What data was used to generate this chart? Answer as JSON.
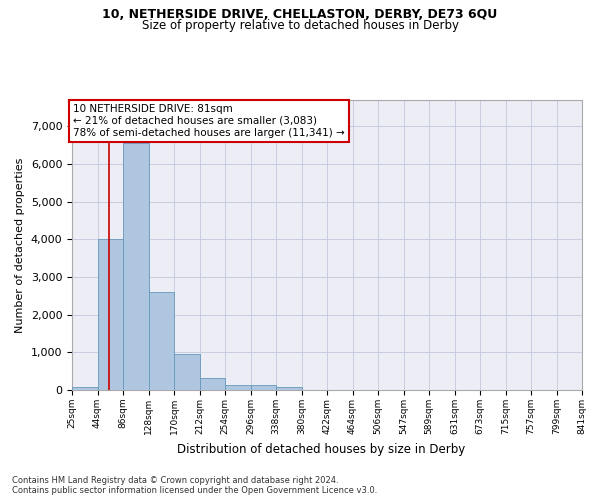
{
  "title1": "10, NETHERSIDE DRIVE, CHELLASTON, DERBY, DE73 6QU",
  "title2": "Size of property relative to detached houses in Derby",
  "xlabel": "Distribution of detached houses by size in Derby",
  "ylabel": "Number of detached properties",
  "footer1": "Contains HM Land Registry data © Crown copyright and database right 2024.",
  "footer2": "Contains public sector information licensed under the Open Government Licence v3.0.",
  "annotation_line1": "10 NETHERSIDE DRIVE: 81sqm",
  "annotation_line2": "← 21% of detached houses are smaller (3,083)",
  "annotation_line3": "78% of semi-detached houses are larger (11,341) →",
  "bar_color": "#aec6e0",
  "bar_edge_color": "#6699bb",
  "grid_color": "#c8cce0",
  "background_color": "#ecedf5",
  "property_line_color": "#cc0000",
  "property_line_x": 86,
  "bin_edges": [
    25,
    67,
    109,
    151,
    193,
    235,
    277,
    319,
    361,
    403,
    445,
    487,
    529,
    571,
    613,
    655,
    697,
    739,
    781,
    823,
    865
  ],
  "bin_labels": [
    "25sqm",
    "44sqm",
    "86sqm",
    "128sqm",
    "170sqm",
    "212sqm",
    "254sqm",
    "296sqm",
    "338sqm",
    "380sqm",
    "422sqm",
    "464sqm",
    "506sqm",
    "547sqm",
    "589sqm",
    "631sqm",
    "673sqm",
    "715sqm",
    "757sqm",
    "799sqm",
    "841sqm"
  ],
  "bar_heights": [
    80,
    4000,
    6550,
    2600,
    950,
    310,
    130,
    120,
    90,
    0,
    0,
    0,
    0,
    0,
    0,
    0,
    0,
    0,
    0,
    0
  ],
  "ylim": [
    0,
    7700
  ],
  "yticks": [
    0,
    1000,
    2000,
    3000,
    4000,
    5000,
    6000,
    7000
  ]
}
